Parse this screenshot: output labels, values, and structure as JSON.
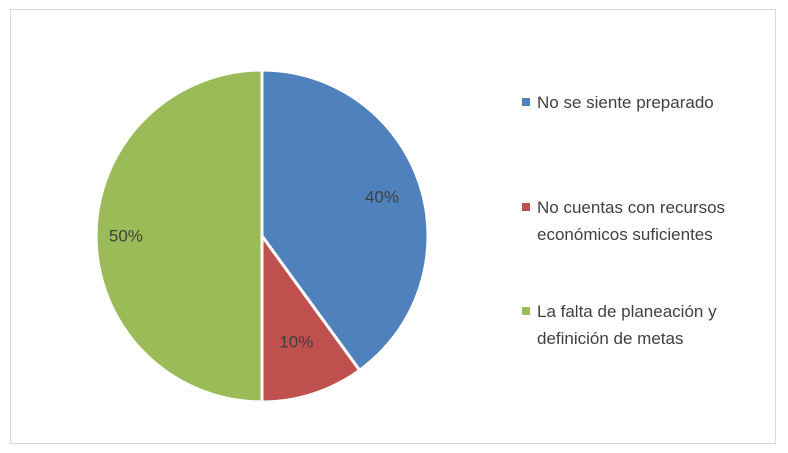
{
  "chart_data": {
    "type": "pie",
    "title": "",
    "start_angle_deg": 0,
    "direction": "clockwise",
    "legend_position": "right",
    "slices": [
      {
        "label": "No se siente preparado",
        "value": 40,
        "display": "40%",
        "color": "#4f81bd"
      },
      {
        "label": "No cuentas con recursos económicos suficientes",
        "value": 10,
        "display": "10%",
        "color": "#c0504d"
      },
      {
        "label": "La falta de planeación y definición de metas",
        "value": 50,
        "display": "50%",
        "color": "#9bbb59"
      }
    ]
  }
}
